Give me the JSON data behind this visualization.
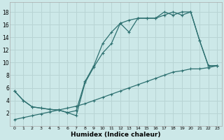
{
  "xlabel": "Humidex (Indice chaleur)",
  "background_color": "#cce8e8",
  "grid_color": "#b8d4d4",
  "line_color": "#2d7070",
  "xlim": [
    -0.5,
    23.5
  ],
  "ylim": [
    0,
    19.5
  ],
  "xticks": [
    0,
    1,
    2,
    3,
    4,
    5,
    6,
    7,
    8,
    9,
    10,
    11,
    12,
    13,
    14,
    15,
    16,
    17,
    18,
    19,
    20,
    21,
    22,
    23
  ],
  "yticks": [
    2,
    4,
    6,
    8,
    10,
    12,
    14,
    16,
    18
  ],
  "line1_x": [
    0,
    1,
    2,
    3,
    4,
    5,
    6,
    7,
    8,
    9,
    10,
    11,
    12,
    13,
    14,
    15,
    16,
    17,
    18,
    19,
    20,
    21,
    22,
    23
  ],
  "line1_y": [
    5.5,
    4.0,
    3.0,
    2.8,
    2.6,
    2.5,
    2.1,
    1.6,
    6.8,
    9.3,
    11.5,
    13.0,
    16.2,
    14.8,
    17.0,
    17.0,
    17.0,
    18.0,
    17.5,
    18.0,
    18.0,
    13.5,
    9.5,
    9.5
  ],
  "line2_x": [
    0,
    1,
    2,
    3,
    4,
    5,
    6,
    7,
    8,
    9,
    10,
    11,
    12,
    13,
    14,
    15,
    16,
    17,
    18,
    19,
    20,
    21,
    22,
    23
  ],
  "line2_y": [
    5.5,
    4.0,
    3.0,
    2.8,
    2.6,
    2.5,
    2.1,
    2.4,
    7.0,
    9.5,
    13.0,
    14.8,
    16.2,
    16.7,
    17.0,
    17.0,
    17.0,
    17.5,
    18.0,
    17.5,
    18.0,
    13.5,
    9.5,
    9.5
  ],
  "line3_x": [
    0,
    1,
    2,
    3,
    4,
    5,
    6,
    7,
    8,
    9,
    10,
    11,
    12,
    13,
    14,
    15,
    16,
    17,
    18,
    19,
    20,
    21,
    22,
    23
  ],
  "line3_y": [
    1.0,
    1.3,
    1.6,
    1.9,
    2.2,
    2.5,
    2.8,
    3.1,
    3.5,
    4.0,
    4.5,
    5.0,
    5.5,
    6.0,
    6.5,
    7.0,
    7.5,
    8.0,
    8.5,
    8.7,
    9.0,
    9.0,
    9.2,
    9.5
  ]
}
